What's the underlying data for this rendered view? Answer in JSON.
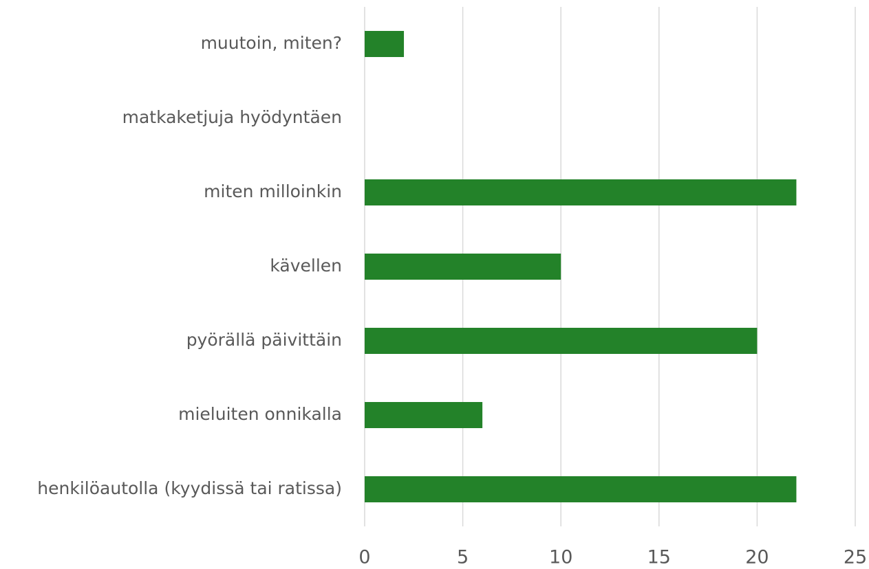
{
  "chart_data": {
    "type": "bar",
    "orientation": "horizontal",
    "categories": [
      "henkilöautolla (kyydissä tai ratissa)",
      "mieluiten onnikalla",
      "pyörällä päivittäin",
      "kävellen",
      "miten milloinkin",
      "matkaketjuja hyödyntäen",
      "muutoin, miten?"
    ],
    "values": [
      22,
      6,
      20,
      10,
      22,
      0,
      2
    ],
    "color": "#238229",
    "xlim": [
      0,
      25
    ],
    "xticks": [
      0,
      5,
      10,
      15,
      20,
      25
    ],
    "grid": true
  }
}
